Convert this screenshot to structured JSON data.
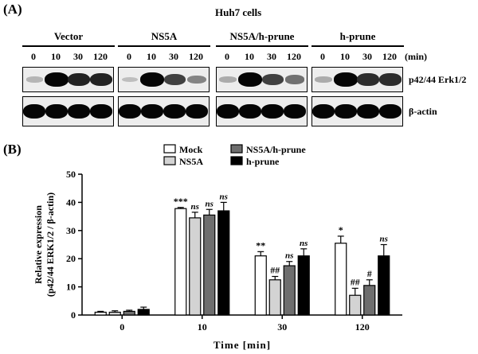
{
  "panel_a": {
    "letter": "(A)",
    "cell_title": "Huh7 cells",
    "unit": "(min)",
    "groups": [
      {
        "name": "Vector",
        "times": [
          "0",
          "10",
          "30",
          "120"
        ],
        "erk_intensity": [
          0.1,
          1.0,
          0.85,
          0.85
        ],
        "actin_intensity": [
          1,
          1,
          1,
          1
        ]
      },
      {
        "name": "NS5A",
        "times": [
          "0",
          "10",
          "30",
          "120"
        ],
        "erk_intensity": [
          0.05,
          1.0,
          0.7,
          0.35
        ],
        "actin_intensity": [
          1,
          1,
          1,
          1
        ]
      },
      {
        "name": "NS5A/h-prune",
        "times": [
          "0",
          "10",
          "30",
          "120"
        ],
        "erk_intensity": [
          0.15,
          1.0,
          0.7,
          0.45
        ],
        "actin_intensity": [
          1,
          1,
          1,
          1
        ]
      },
      {
        "name": "h-prune",
        "times": [
          "0",
          "10",
          "30",
          "120"
        ],
        "erk_intensity": [
          0.15,
          1.0,
          0.8,
          0.8
        ],
        "actin_intensity": [
          1,
          1,
          1,
          1
        ]
      }
    ],
    "blot_labels": [
      "p42/44 Erk1/2",
      "β-actin"
    ]
  },
  "panel_b": {
    "letter": "(B)"
  },
  "chart_data": {
    "type": "bar",
    "categories": [
      "0",
      "10",
      "30",
      "120"
    ],
    "xlabel": "Time [min]",
    "ylabel_line1": "Relative expression",
    "ylabel_line2": "(p42/44 ERK1/2 / β-actin)",
    "ylim": [
      0,
      50
    ],
    "yticks": [
      0,
      10,
      20,
      30,
      40,
      50
    ],
    "legend_position": "top-center",
    "series": [
      {
        "name": "Mock",
        "color": "#ffffff",
        "values": [
          1.0,
          37.8,
          21.0,
          25.5
        ],
        "errors": [
          0.3,
          0.4,
          1.5,
          2.5
        ],
        "annotations": [
          "",
          "***",
          "**",
          "*"
        ]
      },
      {
        "name": "NS5A",
        "color": "#d3d3d3",
        "values": [
          1.0,
          34.5,
          12.5,
          7.0
        ],
        "errors": [
          0.5,
          2.0,
          1.2,
          2.5
        ],
        "annotations": [
          "",
          "ns",
          "##",
          "##"
        ]
      },
      {
        "name": "NS5A/h-prune",
        "color": "#6e6e6e",
        "values": [
          1.3,
          35.5,
          17.5,
          10.5
        ],
        "errors": [
          0.4,
          2.0,
          1.5,
          2.0
        ],
        "annotations": [
          "",
          "ns",
          "ns",
          "#"
        ]
      },
      {
        "name": "h-prune",
        "color": "#000000",
        "values": [
          2.0,
          37.0,
          21.0,
          21.0
        ],
        "errors": [
          0.8,
          3.0,
          2.5,
          4.0
        ],
        "annotations": [
          "",
          "ns",
          "ns",
          "ns"
        ]
      }
    ]
  }
}
